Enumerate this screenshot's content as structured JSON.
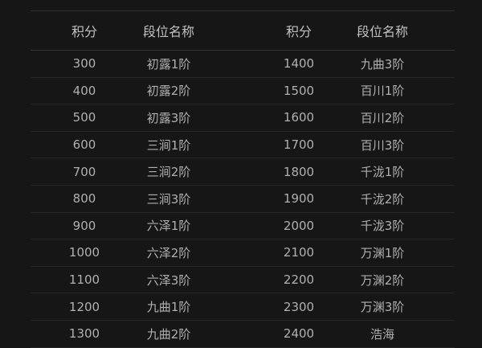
{
  "headers": [
    "积分",
    "段位名称",
    "积分",
    "段位名称"
  ],
  "rows": [
    [
      "300",
      "初露1阶",
      "1400",
      "九曲3阶"
    ],
    [
      "400",
      "初露2阶",
      "1500",
      "百川1阶"
    ],
    [
      "500",
      "初露3阶",
      "1600",
      "百川2阶"
    ],
    [
      "600",
      "三涧1阶",
      "1700",
      "百川3阶"
    ],
    [
      "700",
      "三涧2阶",
      "1800",
      "千泷1阶"
    ],
    [
      "800",
      "三涧3阶",
      "1900",
      "千泷2阶"
    ],
    [
      "900",
      "六泽1阶",
      "2000",
      "千泷3阶"
    ],
    [
      "1000",
      "六泽2阶",
      "2100",
      "万渊1阶"
    ],
    [
      "1100",
      "六泽3阶",
      "2200",
      "万渊2阶"
    ],
    [
      "1200",
      "九曲1阶",
      "2300",
      "万渊3阶"
    ],
    [
      "1300",
      "九曲2阶",
      "2400",
      "浩海"
    ]
  ]
}
